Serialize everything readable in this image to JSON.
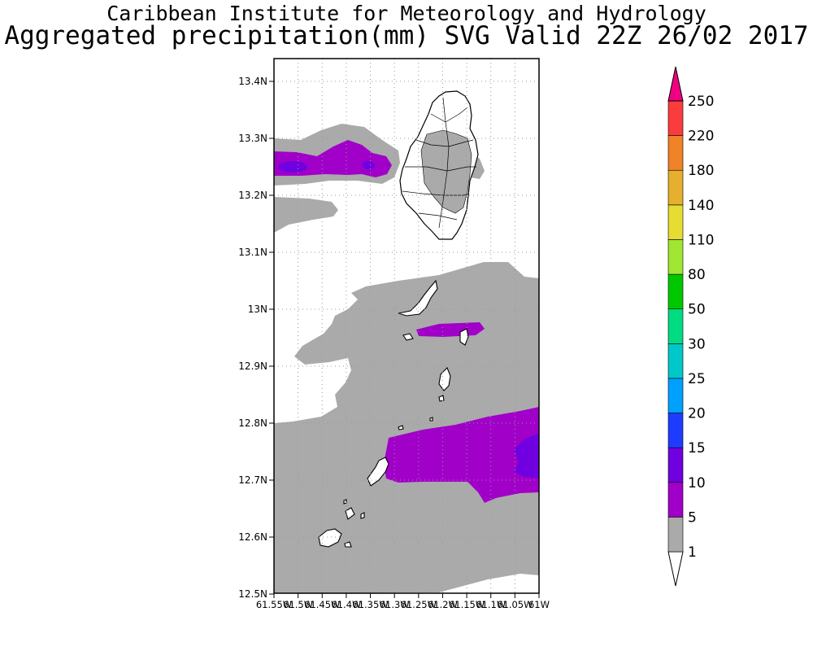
{
  "header": {
    "line1": "Caribbean Institute for Meteorology and Hydrology",
    "line2": "Aggregated precipitation(mm) SVG Valid 22Z 26/02 2017"
  },
  "map": {
    "lat_labels": [
      "13.4N",
      "13.3N",
      "13.2N",
      "13.1N",
      "13N",
      "12.9N",
      "12.8N",
      "12.7N",
      "12.6N",
      "12.5N"
    ],
    "lon_labels": [
      "61.55W",
      "61.5W",
      "61.45W",
      "61.4W",
      "61.35W",
      "61.3W",
      "61.25W",
      "61.2W",
      "61.15W",
      "61.1W",
      "61.05W",
      "61W"
    ],
    "lat_range": [
      12.5,
      13.45
    ],
    "lon_range": [
      -61.55,
      -61.0
    ],
    "grid": true,
    "land_color": "#ffffff"
  },
  "legend": {
    "labels": [
      "1",
      "5",
      "10",
      "15",
      "20",
      "25",
      "30",
      "50",
      "80",
      "110",
      "140",
      "180",
      "220",
      "250"
    ],
    "colors": [
      "#ffffff",
      "#aaaaaa",
      "#a000c8",
      "#7000e0",
      "#1e3cff",
      "#00a0ff",
      "#00c8c8",
      "#00dc82",
      "#00c800",
      "#a0e632",
      "#e6dc32",
      "#e6af2d",
      "#f08228",
      "#fa3c3c",
      "#f00082"
    ],
    "color_names": [
      "white",
      "grey",
      "purple",
      "violet",
      "blue",
      "sky-blue",
      "cyan",
      "aqua-green",
      "green",
      "lime",
      "yellow",
      "gold",
      "orange",
      "red",
      "magenta"
    ]
  }
}
